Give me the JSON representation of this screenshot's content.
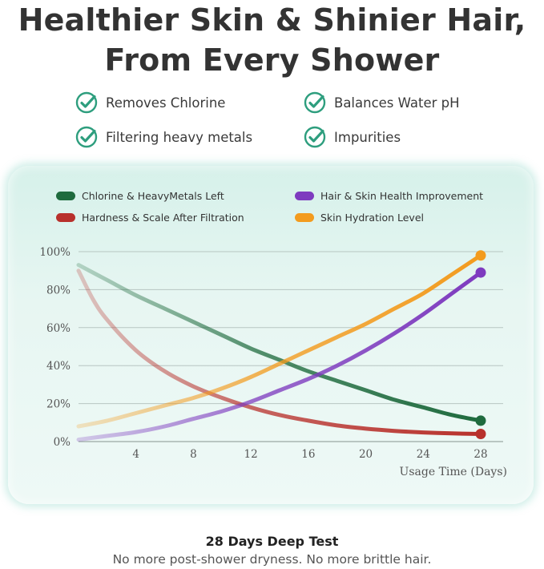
{
  "headline": {
    "line1": "Healthier Skin & Shinier Hair,",
    "line2": "From Every Shower"
  },
  "features": [
    {
      "label": "Removes Chlorine",
      "icon": "check-circle-icon"
    },
    {
      "label": "Balances Water pH",
      "icon": "check-circle-icon"
    },
    {
      "label": "Filtering heavy metals",
      "icon": "check-circle-icon"
    },
    {
      "label": "Impurities",
      "icon": "check-circle-icon"
    }
  ],
  "colors": {
    "accent": "#2e9e7e",
    "chlorine": "#1f6b3e",
    "hair_skin": "#7e3bbf",
    "hardness": "#b8312c",
    "hydration": "#f39b1e"
  },
  "chart_data": {
    "type": "line",
    "xlabel": "Usage Time (Days)",
    "ylabel": "",
    "xlim": [
      0,
      28
    ],
    "ylim": [
      0,
      100
    ],
    "x_ticks": [
      4,
      8,
      12,
      16,
      20,
      24,
      28
    ],
    "y_ticks": [
      "0%",
      "20%",
      "40%",
      "60%",
      "80%",
      "100%"
    ],
    "y_tick_values": [
      0,
      20,
      40,
      60,
      80,
      100
    ],
    "grid": true,
    "legend_position": "top",
    "series": [
      {
        "name": "Chlorine & HeavyMetals Left",
        "color": "#1f6b3e",
        "x": [
          0,
          2,
          4,
          6,
          8,
          10,
          12,
          14,
          16,
          18,
          20,
          22,
          24,
          26,
          28
        ],
        "values": [
          93,
          85,
          77,
          70,
          63,
          56,
          49,
          43,
          37,
          32,
          27,
          22,
          18,
          14,
          11
        ]
      },
      {
        "name": "Hardness & Scale After Filtration",
        "color": "#b8312c",
        "x": [
          0,
          1,
          2,
          4,
          6,
          8,
          10,
          12,
          14,
          16,
          18,
          20,
          22,
          24,
          26,
          28
        ],
        "values": [
          90,
          75,
          64,
          48,
          37,
          29,
          23,
          18,
          14,
          11,
          8.5,
          6.8,
          5.6,
          4.8,
          4.3,
          4
        ]
      },
      {
        "name": "Hair & Skin Health Improvement",
        "color": "#7e3bbf",
        "x": [
          0,
          2,
          4,
          6,
          8,
          10,
          12,
          14,
          16,
          18,
          20,
          22,
          24,
          26,
          28
        ],
        "values": [
          1,
          3,
          5,
          8,
          12,
          16,
          21,
          27,
          33,
          40,
          48,
          57,
          67,
          78,
          89
        ]
      },
      {
        "name": "Skin Hydration Level",
        "color": "#f39b1e",
        "x": [
          0,
          2,
          4,
          6,
          8,
          10,
          12,
          14,
          16,
          18,
          20,
          22,
          24,
          26,
          28
        ],
        "values": [
          8,
          11,
          15,
          19,
          23,
          28,
          34,
          41,
          48,
          55,
          62,
          70,
          78,
          88,
          98
        ]
      }
    ]
  },
  "footer": {
    "title": "28 Days Deep Test",
    "subtitle": "No more post-shower dryness. No more brittle hair."
  }
}
